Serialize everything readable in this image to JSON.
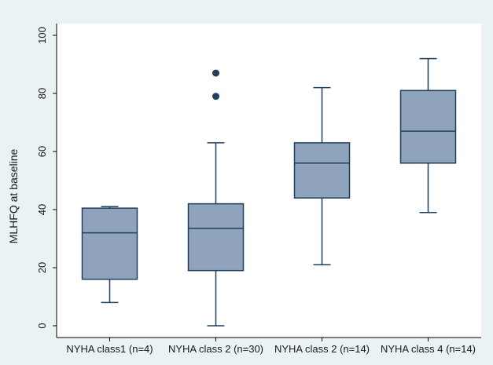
{
  "chart_data": {
    "type": "box",
    "title": "",
    "xlabel": "",
    "ylabel": "MLHFQ at baseline",
    "ylim": [
      0,
      100
    ],
    "yticks": [
      0,
      20,
      40,
      60,
      80,
      100
    ],
    "grid": false,
    "legend": "none",
    "categories": [
      "NYHA class1 (n=4)",
      "NYHA class 2 (n=30)",
      "NYHA class 2 (n=14)",
      "NYHA class 4 (n=14)"
    ],
    "boxes": [
      {
        "whisker_low": 8,
        "q1": 16,
        "median": 32,
        "q3": 40.5,
        "whisker_high": 41,
        "outliers": []
      },
      {
        "whisker_low": 0,
        "q1": 19,
        "median": 33.5,
        "q3": 42,
        "whisker_high": 63,
        "outliers": [
          79,
          87
        ]
      },
      {
        "whisker_low": 21,
        "q1": 44,
        "median": 56,
        "q3": 63,
        "whisker_high": 82,
        "outliers": []
      },
      {
        "whisker_low": 39,
        "q1": 56,
        "median": 67,
        "q3": 81,
        "whisker_high": 92,
        "outliers": []
      }
    ],
    "colors": {
      "box_fill": "#8fa3bd",
      "box_stroke": "#1f3f5f",
      "outlier": "#1f3f5f",
      "plot_background": "#ffffff",
      "outer_background": "#eaf2f3",
      "axis": "#000000"
    }
  }
}
